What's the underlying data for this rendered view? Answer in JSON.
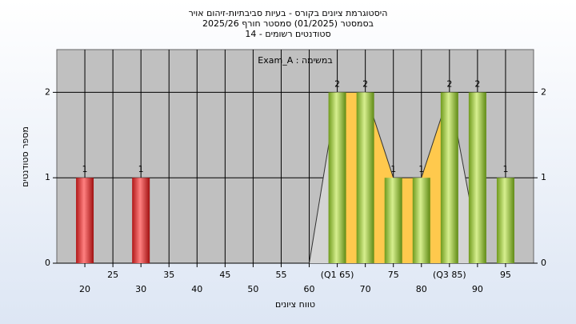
{
  "chart_data": {
    "type": "histogram",
    "title": [
      "היסטוגרמת ציונים בקורס - בעיות סביבתיות-זיהום אויר",
      "בסמסטר  (01/2025)  סמסטר חורף 2025/26",
      "סטודנטים רשומים - 14"
    ],
    "annotation": "Exam_A : במשימה",
    "xlabel": "טווח ציונים",
    "ylabel": "מספר סטודנטים",
    "x": [
      20,
      30,
      65,
      70,
      75,
      80,
      85,
      90,
      95
    ],
    "values": [
      1,
      1,
      2,
      2,
      1,
      1,
      2,
      2,
      1
    ],
    "colors": [
      "red",
      "red",
      "green",
      "green",
      "green",
      "green",
      "green",
      "green",
      "green"
    ],
    "polygon": {
      "x": [
        60,
        65,
        70,
        75,
        80,
        85,
        89
      ],
      "values": [
        0,
        2,
        2,
        1,
        1,
        2,
        0.6
      ]
    },
    "quartiles": [
      65,
      85
    ],
    "xlim": [
      15,
      100
    ],
    "ylim": [
      0,
      2.5
    ],
    "xticks": [
      20,
      25,
      30,
      35,
      40,
      45,
      50,
      55,
      60,
      {
        "value": 65,
        "label": "(Q1 65)"
      },
      70,
      75,
      80,
      {
        "value": 85,
        "label": "(Q3 85)"
      },
      90,
      95
    ],
    "yticks": [
      0,
      1,
      2
    ],
    "y2ticks": [
      0,
      1,
      2
    ],
    "grid": true
  }
}
